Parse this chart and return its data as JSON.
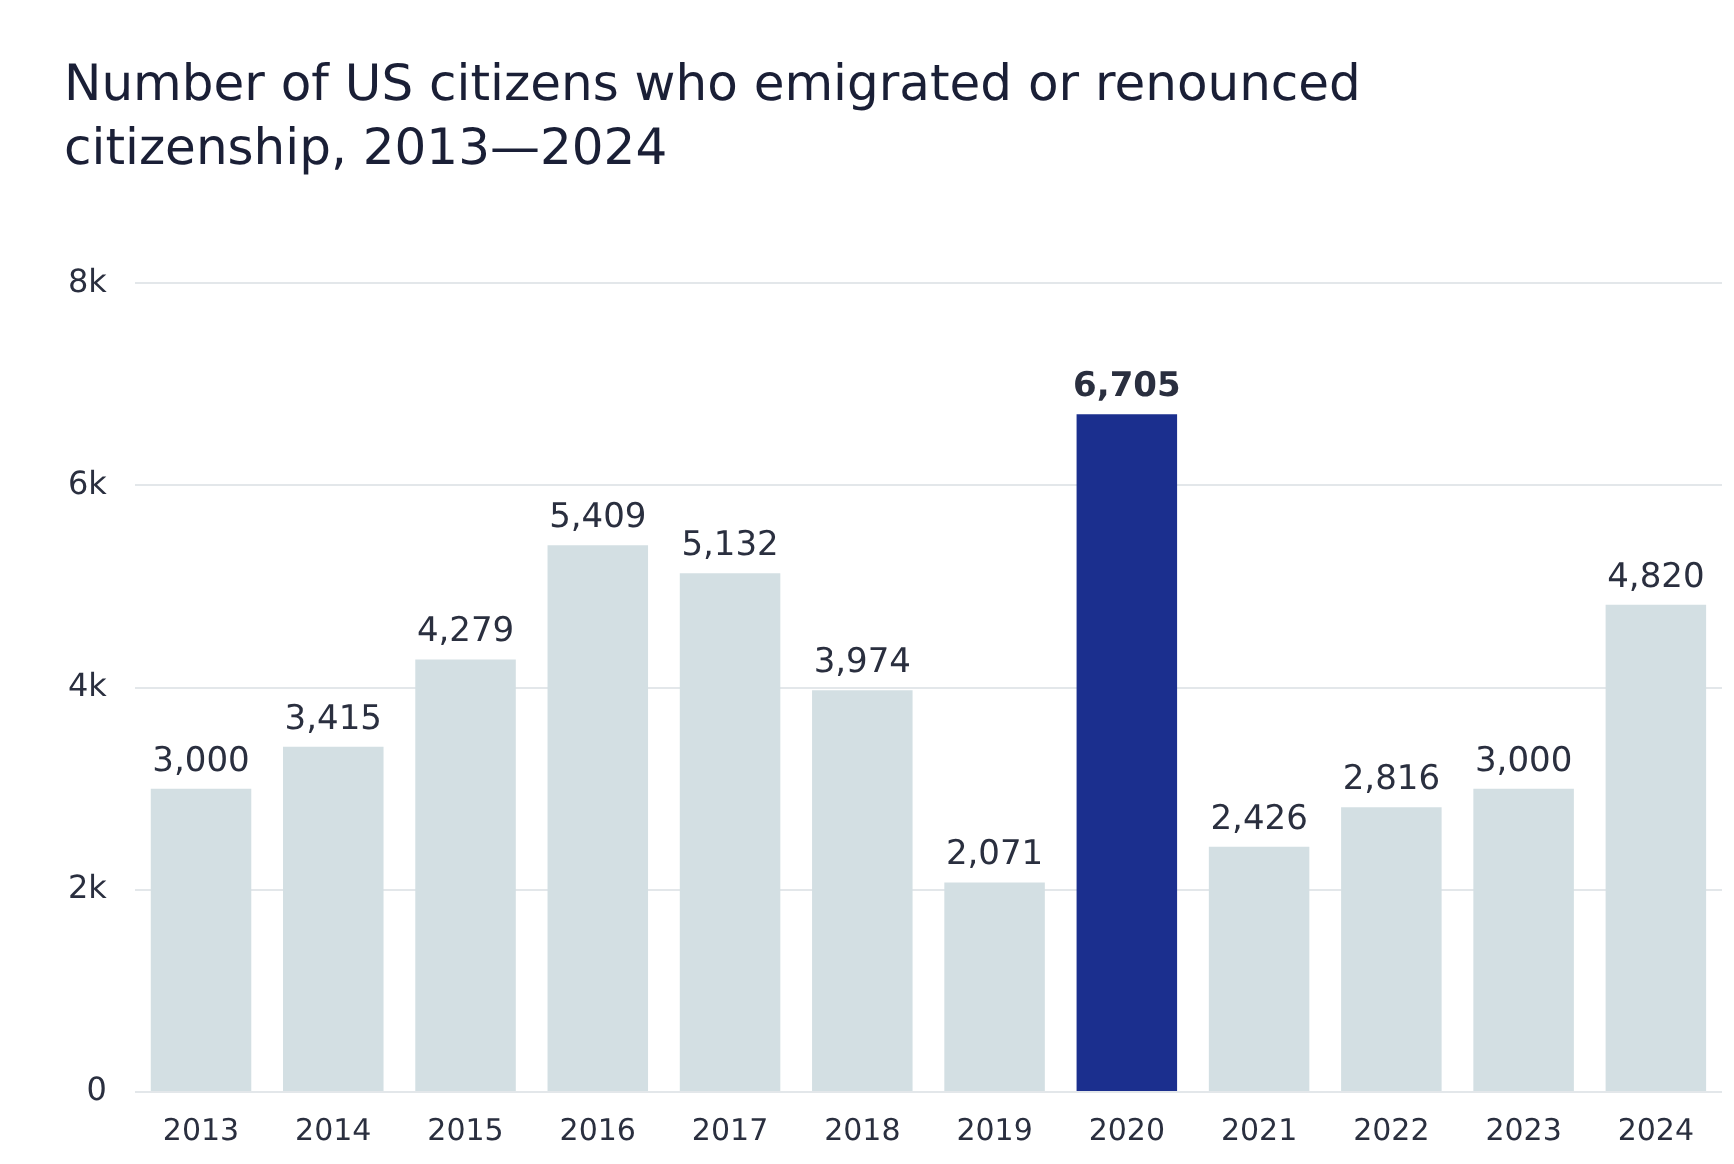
{
  "chart_data": {
    "type": "bar",
    "title": "Number of US citizens who emigrated or renounced citizenship, 2013—2024",
    "categories": [
      "2013",
      "2014",
      "2015",
      "2016",
      "2017",
      "2018",
      "2019",
      "2020",
      "2021",
      "2022",
      "2023",
      "2024"
    ],
    "values": [
      3000,
      3415,
      4279,
      5409,
      5132,
      3974,
      2071,
      6705,
      2426,
      2816,
      3000,
      4820
    ],
    "colors": [
      "#d3dfe3",
      "#d3dfe3",
      "#d3dfe3",
      "#d3dfe3",
      "#d3dfe3",
      "#d3dfe3",
      "#d3dfe3",
      "#1b2f8e",
      "#d3dfe3",
      "#d3dfe3",
      "#d3dfe3",
      "#d3dfe3"
    ],
    "ylim": [
      0,
      8000
    ],
    "yticks": [
      {
        "value": 0,
        "label": "0"
      },
      {
        "value": 2000,
        "label": "2k"
      },
      {
        "value": 4000,
        "label": "4k"
      },
      {
        "value": 6000,
        "label": "6k"
      },
      {
        "value": 8000,
        "label": "8k"
      }
    ],
    "value_labels": [
      "3,000",
      "3,415",
      "4,279",
      "5,409",
      "5,132",
      "3,974",
      "2,071",
      "6,705",
      "2,426",
      "2,816",
      "3,000",
      "4,820"
    ],
    "grid": "y"
  }
}
